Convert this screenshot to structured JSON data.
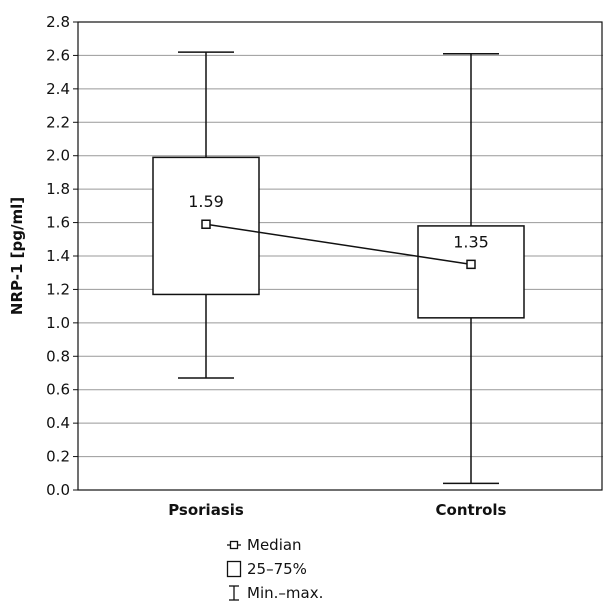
{
  "chart_data": {
    "type": "box",
    "ylabel": "NRP-1 [pg/ml]",
    "ylim": [
      0.0,
      2.8
    ],
    "yticks": [
      "0.0",
      "0.2",
      "0.4",
      "0.6",
      "0.8",
      "1.0",
      "1.2",
      "1.4",
      "1.6",
      "1.8",
      "2.0",
      "2.2",
      "2.4",
      "2.6",
      "2.8"
    ],
    "grid": true,
    "categories": [
      "Psoriasis",
      "Controls"
    ],
    "boxes": [
      {
        "category": "Psoriasis",
        "min": 0.67,
        "q1": 1.17,
        "median": 1.59,
        "q3": 1.99,
        "max": 2.62,
        "median_label": "1.59"
      },
      {
        "category": "Controls",
        "min": 0.04,
        "q1": 1.03,
        "median": 1.35,
        "q3": 1.58,
        "max": 2.61,
        "median_label": "1.35"
      }
    ],
    "median_line": true,
    "legend": {
      "position": "bottom",
      "items": [
        {
          "symbol": "median",
          "label": "Median"
        },
        {
          "symbol": "box",
          "label": "25–75%"
        },
        {
          "symbol": "whisker",
          "label": "Min.–max."
        }
      ]
    },
    "colors": {
      "line": "#111111",
      "grid": "#999999",
      "box_fill": "#ffffff"
    }
  }
}
